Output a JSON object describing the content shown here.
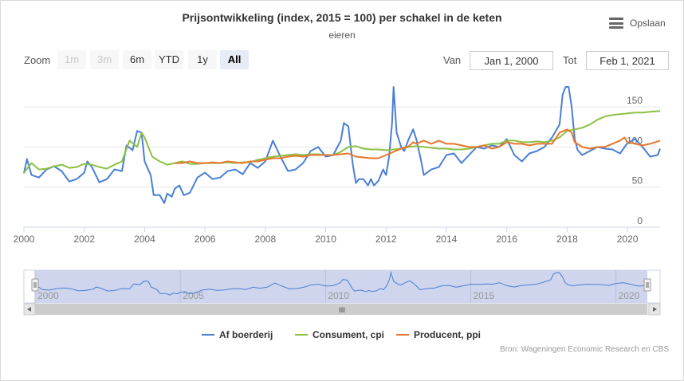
{
  "title": "Prijsontwikkeling (index, 2015 = 100) per schakel in de keten",
  "subtitle": "eieren",
  "menu_label": "Opslaan",
  "menu_icon": "hamburger-menu-icon",
  "zoom": {
    "label": "Zoom",
    "buttons": [
      {
        "label": "1m",
        "state": "disabled"
      },
      {
        "label": "3m",
        "state": "disabled"
      },
      {
        "label": "6m",
        "state": "normal"
      },
      {
        "label": "YTD",
        "state": "normal"
      },
      {
        "label": "1y",
        "state": "normal"
      },
      {
        "label": "All",
        "state": "active"
      }
    ]
  },
  "range": {
    "from_label": "Van",
    "from_value": "Jan 1, 2000",
    "to_label": "Tot",
    "to_value": "Feb 1, 2021"
  },
  "navigator": {
    "tick_labels": [
      "2000",
      "2005",
      "2010",
      "2015",
      "2020"
    ],
    "scrollbar_grip": "III"
  },
  "credits": "Bron: Wageningen Economic Research en CBS",
  "colors": {
    "blue": "#4a7fd4",
    "green": "#8dc044",
    "orange": "#e8762d",
    "navigator_fill": "#ccd3ec"
  },
  "chart_data": {
    "type": "line",
    "title": "Prijsontwikkeling (index, 2015 = 100) per schakel in de keten",
    "subtitle": "eieren",
    "xlim": [
      2000,
      2021.08
    ],
    "ylim": [
      0,
      180
    ],
    "x_ticks": [
      "2000",
      "2002",
      "2004",
      "2006",
      "2008",
      "2010",
      "2012",
      "2014",
      "2016",
      "2018",
      "2020"
    ],
    "y_ticks": [
      "0",
      "50",
      "100",
      "150"
    ],
    "legend_position": "bottom",
    "grid": true,
    "series": [
      {
        "name": "Af boerderij",
        "color": "#4a7fd4",
        "points": [
          [
            2000.0,
            67
          ],
          [
            2000.1,
            85
          ],
          [
            2000.25,
            65
          ],
          [
            2000.5,
            62
          ],
          [
            2000.75,
            72
          ],
          [
            2001.0,
            76
          ],
          [
            2001.25,
            70
          ],
          [
            2001.5,
            57
          ],
          [
            2001.75,
            60
          ],
          [
            2002.0,
            68
          ],
          [
            2002.1,
            82
          ],
          [
            2002.25,
            75
          ],
          [
            2002.5,
            56
          ],
          [
            2002.75,
            60
          ],
          [
            2003.0,
            72
          ],
          [
            2003.25,
            70
          ],
          [
            2003.4,
            102
          ],
          [
            2003.6,
            96
          ],
          [
            2003.75,
            120
          ],
          [
            2003.9,
            118
          ],
          [
            2004.0,
            82
          ],
          [
            2004.2,
            65
          ],
          [
            2004.3,
            40
          ],
          [
            2004.5,
            40
          ],
          [
            2004.65,
            30
          ],
          [
            2004.75,
            42
          ],
          [
            2004.9,
            38
          ],
          [
            2005.0,
            48
          ],
          [
            2005.15,
            52
          ],
          [
            2005.3,
            40
          ],
          [
            2005.5,
            43
          ],
          [
            2005.75,
            62
          ],
          [
            2006.0,
            68
          ],
          [
            2006.25,
            60
          ],
          [
            2006.5,
            62
          ],
          [
            2006.75,
            70
          ],
          [
            2007.0,
            72
          ],
          [
            2007.25,
            66
          ],
          [
            2007.5,
            80
          ],
          [
            2007.75,
            74
          ],
          [
            2008.0,
            82
          ],
          [
            2008.25,
            108
          ],
          [
            2008.5,
            88
          ],
          [
            2008.75,
            70
          ],
          [
            2009.0,
            72
          ],
          [
            2009.25,
            80
          ],
          [
            2009.5,
            95
          ],
          [
            2009.75,
            100
          ],
          [
            2010.0,
            88
          ],
          [
            2010.25,
            90
          ],
          [
            2010.5,
            108
          ],
          [
            2010.6,
            130
          ],
          [
            2010.75,
            126
          ],
          [
            2010.9,
            78
          ],
          [
            2011.0,
            55
          ],
          [
            2011.1,
            60
          ],
          [
            2011.25,
            60
          ],
          [
            2011.4,
            52
          ],
          [
            2011.5,
            60
          ],
          [
            2011.6,
            52
          ],
          [
            2011.75,
            58
          ],
          [
            2011.9,
            72
          ],
          [
            2012.0,
            65
          ],
          [
            2012.1,
            88
          ],
          [
            2012.2,
            130
          ],
          [
            2012.25,
            175
          ],
          [
            2012.35,
            118
          ],
          [
            2012.5,
            100
          ],
          [
            2012.6,
            95
          ],
          [
            2012.75,
            110
          ],
          [
            2012.9,
            122
          ],
          [
            2013.0,
            110
          ],
          [
            2013.15,
            85
          ],
          [
            2013.25,
            65
          ],
          [
            2013.5,
            72
          ],
          [
            2013.75,
            75
          ],
          [
            2014.0,
            90
          ],
          [
            2014.25,
            92
          ],
          [
            2014.5,
            80
          ],
          [
            2014.75,
            90
          ],
          [
            2015.0,
            100
          ],
          [
            2015.25,
            98
          ],
          [
            2015.5,
            102
          ],
          [
            2015.75,
            100
          ],
          [
            2016.0,
            110
          ],
          [
            2016.25,
            90
          ],
          [
            2016.5,
            82
          ],
          [
            2016.75,
            92
          ],
          [
            2017.0,
            95
          ],
          [
            2017.25,
            100
          ],
          [
            2017.5,
            112
          ],
          [
            2017.75,
            128
          ],
          [
            2017.85,
            165
          ],
          [
            2017.95,
            175
          ],
          [
            2018.05,
            175
          ],
          [
            2018.15,
            150
          ],
          [
            2018.25,
            110
          ],
          [
            2018.35,
            96
          ],
          [
            2018.5,
            90
          ],
          [
            2018.75,
            95
          ],
          [
            2019.0,
            100
          ],
          [
            2019.25,
            98
          ],
          [
            2019.5,
            97
          ],
          [
            2019.75,
            92
          ],
          [
            2020.0,
            105
          ],
          [
            2020.25,
            110
          ],
          [
            2020.5,
            100
          ],
          [
            2020.75,
            88
          ],
          [
            2021.0,
            90
          ],
          [
            2021.08,
            98
          ]
        ]
      },
      {
        "name": "Consument, cpi",
        "color": "#8dc044",
        "points": [
          [
            2000.0,
            68
          ],
          [
            2000.25,
            80
          ],
          [
            2000.5,
            72
          ],
          [
            2000.75,
            73
          ],
          [
            2001.0,
            76
          ],
          [
            2001.25,
            78
          ],
          [
            2001.5,
            74
          ],
          [
            2001.75,
            75
          ],
          [
            2002.0,
            79
          ],
          [
            2002.25,
            78
          ],
          [
            2002.5,
            75
          ],
          [
            2002.75,
            73
          ],
          [
            2003.0,
            78
          ],
          [
            2003.25,
            82
          ],
          [
            2003.5,
            108
          ],
          [
            2003.75,
            100
          ],
          [
            2003.9,
            118
          ],
          [
            2004.0,
            112
          ],
          [
            2004.25,
            88
          ],
          [
            2004.5,
            82
          ],
          [
            2004.75,
            78
          ],
          [
            2005.0,
            80
          ],
          [
            2005.25,
            82
          ],
          [
            2005.5,
            79
          ],
          [
            2005.75,
            79
          ],
          [
            2006.0,
            80
          ],
          [
            2006.25,
            80
          ],
          [
            2006.5,
            80
          ],
          [
            2006.75,
            81
          ],
          [
            2007.0,
            80
          ],
          [
            2007.25,
            81
          ],
          [
            2007.5,
            81
          ],
          [
            2007.75,
            84
          ],
          [
            2008.0,
            86
          ],
          [
            2008.25,
            88
          ],
          [
            2008.5,
            89
          ],
          [
            2008.75,
            90
          ],
          [
            2009.0,
            91
          ],
          [
            2009.25,
            90
          ],
          [
            2009.5,
            91
          ],
          [
            2009.75,
            91
          ],
          [
            2010.0,
            90
          ],
          [
            2010.25,
            90
          ],
          [
            2010.5,
            94
          ],
          [
            2010.75,
            100
          ],
          [
            2011.0,
            101
          ],
          [
            2011.25,
            98
          ],
          [
            2011.5,
            97
          ],
          [
            2011.75,
            97
          ],
          [
            2012.0,
            96
          ],
          [
            2012.25,
            97
          ],
          [
            2012.5,
            98
          ],
          [
            2012.75,
            100
          ],
          [
            2013.0,
            101
          ],
          [
            2013.25,
            100
          ],
          [
            2013.5,
            99
          ],
          [
            2013.75,
            98
          ],
          [
            2014.0,
            98
          ],
          [
            2014.25,
            97
          ],
          [
            2014.5,
            97
          ],
          [
            2014.75,
            98
          ],
          [
            2015.0,
            100
          ],
          [
            2015.25,
            102
          ],
          [
            2015.5,
            104
          ],
          [
            2015.75,
            104
          ],
          [
            2016.0,
            108
          ],
          [
            2016.25,
            108
          ],
          [
            2016.5,
            106
          ],
          [
            2016.75,
            106
          ],
          [
            2017.0,
            107
          ],
          [
            2017.25,
            106
          ],
          [
            2017.5,
            108
          ],
          [
            2017.75,
            112
          ],
          [
            2018.0,
            120
          ],
          [
            2018.25,
            122
          ],
          [
            2018.5,
            124
          ],
          [
            2018.75,
            128
          ],
          [
            2019.0,
            134
          ],
          [
            2019.25,
            138
          ],
          [
            2019.5,
            140
          ],
          [
            2019.75,
            141
          ],
          [
            2020.0,
            142
          ],
          [
            2020.25,
            143
          ],
          [
            2020.5,
            143
          ],
          [
            2020.75,
            144
          ],
          [
            2021.08,
            145
          ]
        ]
      },
      {
        "name": "Producent, ppi",
        "color": "#e8762d",
        "points": [
          [
            2005.0,
            80
          ],
          [
            2005.25,
            80
          ],
          [
            2005.5,
            82
          ],
          [
            2005.75,
            80
          ],
          [
            2006.0,
            80
          ],
          [
            2006.25,
            81
          ],
          [
            2006.5,
            80
          ],
          [
            2006.75,
            82
          ],
          [
            2007.0,
            81
          ],
          [
            2007.25,
            80
          ],
          [
            2007.5,
            82
          ],
          [
            2007.75,
            82
          ],
          [
            2008.0,
            84
          ],
          [
            2008.25,
            86
          ],
          [
            2008.5,
            86
          ],
          [
            2008.75,
            88
          ],
          [
            2009.0,
            89
          ],
          [
            2009.25,
            88
          ],
          [
            2009.5,
            90
          ],
          [
            2009.75,
            90
          ],
          [
            2010.0,
            90
          ],
          [
            2010.25,
            90
          ],
          [
            2010.5,
            91
          ],
          [
            2010.75,
            92
          ],
          [
            2011.0,
            88
          ],
          [
            2011.25,
            87
          ],
          [
            2011.5,
            86
          ],
          [
            2011.75,
            86
          ],
          [
            2012.0,
            90
          ],
          [
            2012.25,
            94
          ],
          [
            2012.5,
            98
          ],
          [
            2012.75,
            101
          ],
          [
            2012.9,
            106
          ],
          [
            2013.0,
            104
          ],
          [
            2013.25,
            108
          ],
          [
            2013.5,
            104
          ],
          [
            2013.75,
            108
          ],
          [
            2014.0,
            104
          ],
          [
            2014.25,
            104
          ],
          [
            2014.5,
            102
          ],
          [
            2014.75,
            100
          ],
          [
            2015.0,
            100
          ],
          [
            2015.25,
            102
          ],
          [
            2015.5,
            98
          ],
          [
            2015.75,
            100
          ],
          [
            2016.0,
            106
          ],
          [
            2016.25,
            104
          ],
          [
            2016.5,
            104
          ],
          [
            2016.75,
            102
          ],
          [
            2017.0,
            104
          ],
          [
            2017.25,
            104
          ],
          [
            2017.5,
            104
          ],
          [
            2017.75,
            118
          ],
          [
            2018.0,
            122
          ],
          [
            2018.15,
            118
          ],
          [
            2018.25,
            106
          ],
          [
            2018.5,
            100
          ],
          [
            2018.75,
            98
          ],
          [
            2019.0,
            100
          ],
          [
            2019.25,
            100
          ],
          [
            2019.5,
            104
          ],
          [
            2019.75,
            108
          ],
          [
            2019.9,
            112
          ],
          [
            2020.0,
            106
          ],
          [
            2020.25,
            104
          ],
          [
            2020.5,
            102
          ],
          [
            2020.75,
            104
          ],
          [
            2021.08,
            108
          ]
        ]
      }
    ]
  }
}
